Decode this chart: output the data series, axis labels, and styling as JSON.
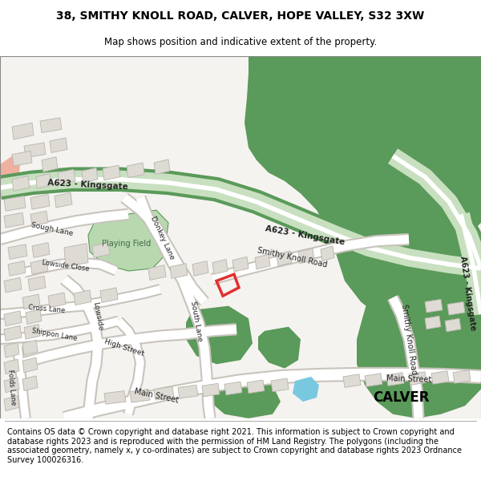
{
  "title_line1": "38, SMITHY KNOLL ROAD, CALVER, HOPE VALLEY, S32 3XW",
  "title_line2": "Map shows position and indicative extent of the property.",
  "footer_text": "Contains OS data © Crown copyright and database right 2021. This information is subject to Crown copyright and database rights 2023 and is reproduced with the permission of HM Land Registry. The polygons (including the associated geometry, namely x, y co-ordinates) are subject to Crown copyright and database rights 2023 Ordnance Survey 100026316.",
  "map_bg": "#f5f3f0",
  "road_white": "#ffffff",
  "road_outline": "#c8c4bc",
  "a623_green_light": "#c8e0c0",
  "a623_green_dark": "#6aaa6a",
  "green_dark": "#5a9a5a",
  "green_light": "#a8c8a0",
  "playing_field": "#b8d8b0",
  "highlight_red": "#e03030",
  "blue_color": "#78c8e0",
  "building_fill": "#dedad4",
  "building_edge": "#b8b4ac",
  "label_color": "#222222",
  "salmon_color": "#f0b0a0"
}
